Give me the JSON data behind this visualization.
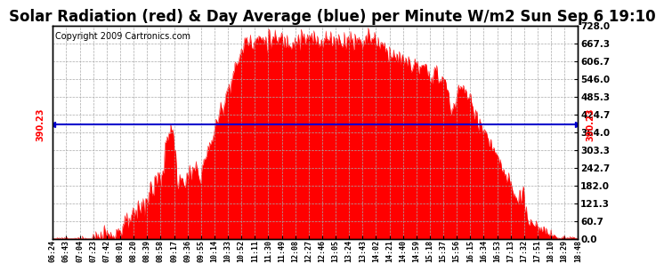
{
  "title": "Solar Radiation (red) & Day Average (blue) per Minute W/m2 Sun Sep 6 19:10",
  "copyright": "Copyright 2009 Cartronics.com",
  "avg_value": 390.23,
  "y_max": 728.0,
  "y_min": 0.0,
  "yticks": [
    0.0,
    60.7,
    121.3,
    182.0,
    242.7,
    303.3,
    364.0,
    424.7,
    485.3,
    546.0,
    606.7,
    667.3,
    728.0
  ],
  "fill_color": "#FF0000",
  "line_color": "#0000CC",
  "bg_color": "#FFFFFF",
  "grid_color": "#AAAAAA",
  "title_fontsize": 12,
  "copyright_fontsize": 7,
  "x_start_min": 384,
  "x_end_min": 1128,
  "xtick_labels": [
    "06:24",
    "06:43",
    "07:04",
    "07:23",
    "07:42",
    "08:01",
    "08:20",
    "08:39",
    "08:58",
    "09:17",
    "09:36",
    "09:55",
    "10:14",
    "10:33",
    "10:52",
    "11:11",
    "11:30",
    "11:49",
    "12:08",
    "12:27",
    "12:46",
    "13:05",
    "13:24",
    "13:43",
    "14:02",
    "14:21",
    "14:40",
    "14:59",
    "15:18",
    "15:37",
    "15:56",
    "16:15",
    "16:34",
    "16:53",
    "17:13",
    "17:32",
    "17:51",
    "18:10",
    "18:29",
    "18:48"
  ],
  "left_label_390": "390.23",
  "right_label_390": "390.23"
}
